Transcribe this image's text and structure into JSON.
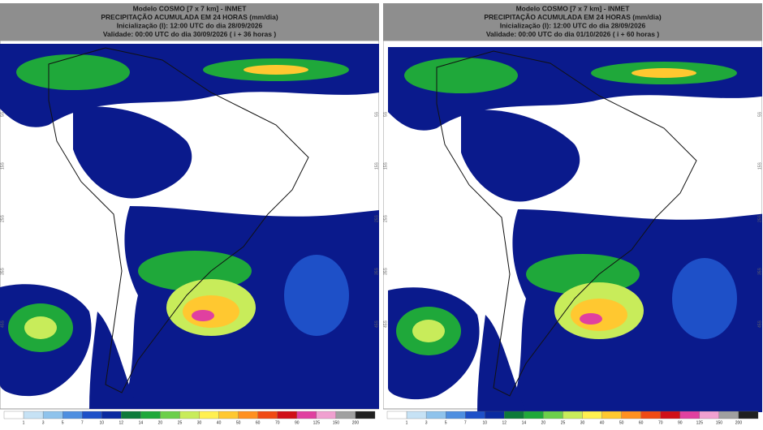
{
  "panels": [
    {
      "title_lines": [
        "Modelo COSMO [7 x 7 km] - INMET",
        "PRECIPITAÇÃO ACUMULADA EM 24 HORAS (mm/dia)",
        "Inicialização (I): 12:00 UTC do dia 28/09/2026",
        "Validade: 00:00 UTC do dia 30/09/2026 ( i + 36 horas )"
      ],
      "lat_labels": [
        "5S",
        "15S",
        "25S",
        "35S",
        "45S"
      ],
      "colorbar_labels": [
        1,
        3,
        5,
        7,
        10,
        12,
        14,
        20,
        25,
        30,
        40,
        50,
        60,
        70,
        90,
        125,
        150,
        200
      ]
    },
    {
      "title_lines": [
        "Modelo COSMO [7 x 7 km] - INMET",
        "PRECIPITAÇÃO ACUMULADA EM 24 HORAS (mm/dia)",
        "Inicialização (I): 12:00 UTC do dia 28/09/2026",
        "Validade: 00:00 UTC do dia 01/10/2026 ( i + 60 horas )"
      ],
      "lat_labels": [
        "5S",
        "15S",
        "25S",
        "35S",
        "45S"
      ],
      "colorbar_labels": [
        1,
        3,
        5,
        7,
        10,
        12,
        14,
        20,
        25,
        30,
        40,
        50,
        60,
        70,
        90,
        125,
        150,
        200
      ]
    }
  ]
}
